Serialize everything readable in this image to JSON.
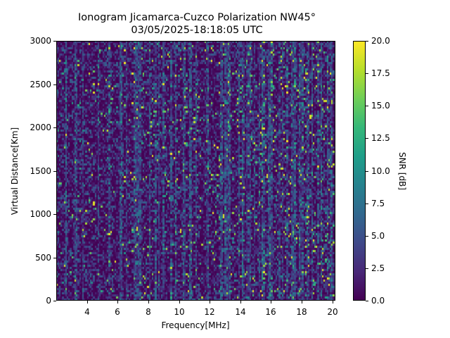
{
  "chart_data": {
    "type": "heatmap",
    "title": "Ionogram Jicamarca-Cuzco Polarization NW45°",
    "subtitle": "03/05/2025-18:18:05 UTC",
    "xlabel": "Frequency[MHz]",
    "ylabel": "Virtual Distance[Km]",
    "xlim": [
      2.0,
      20.2
    ],
    "ylim": [
      0,
      3000
    ],
    "x_ticks": [
      4,
      6,
      8,
      10,
      12,
      14,
      16,
      18,
      20
    ],
    "y_ticks": [
      0,
      500,
      1000,
      1500,
      2000,
      2500,
      3000
    ],
    "colorbar": {
      "label": "SNR [dB]",
      "colormap": "viridis",
      "range": [
        0.0,
        20.0
      ],
      "ticks": [
        "0.0",
        "2.5",
        "5.0",
        "7.5",
        "10.0",
        "12.5",
        "15.0",
        "17.5",
        "20.0"
      ]
    },
    "description": "Mostly noise-like SNR field (0-5 dB dominant) with sparse vertical streaks reaching 10-20 dB; higher streak density above ~12 MHz",
    "grid": false,
    "legend": null
  },
  "labels": {
    "title_line1": "Ionogram Jicamarca-Cuzco Polarization NW45°",
    "title_line2": "03/05/2025-18:18:05 UTC",
    "xlabel": "Frequency[MHz]",
    "ylabel": "Virtual Distance[Km]",
    "cbar_label": "SNR [dB]"
  }
}
